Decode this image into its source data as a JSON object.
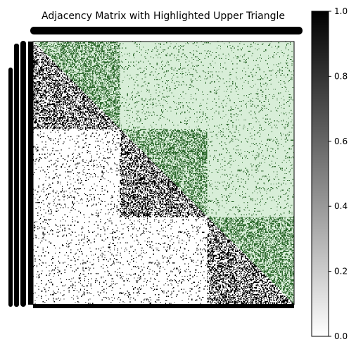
{
  "chart_data": {
    "type": "heatmap",
    "title": "Adjacency Matrix with Highlighted Upper Triangle",
    "size": 300,
    "blocks": [
      100,
      100,
      100
    ],
    "density": {
      "within_block": 0.45,
      "between_block": 0.06
    },
    "upper_triangle_highlight": true,
    "colormap": "gray_r",
    "highlight_color": "#d8eed8",
    "highlight_on_color": "#2f6b2f",
    "colorbar": {
      "vmin": 0.0,
      "vmax": 1.0,
      "ticks": [
        "0.0",
        "0.2",
        "0.4",
        "0.6",
        "0.8",
        "1.0"
      ]
    },
    "x_tick_labels": "overlapping (unreadable)",
    "y_tick_labels": "overlapping (unreadable)"
  }
}
